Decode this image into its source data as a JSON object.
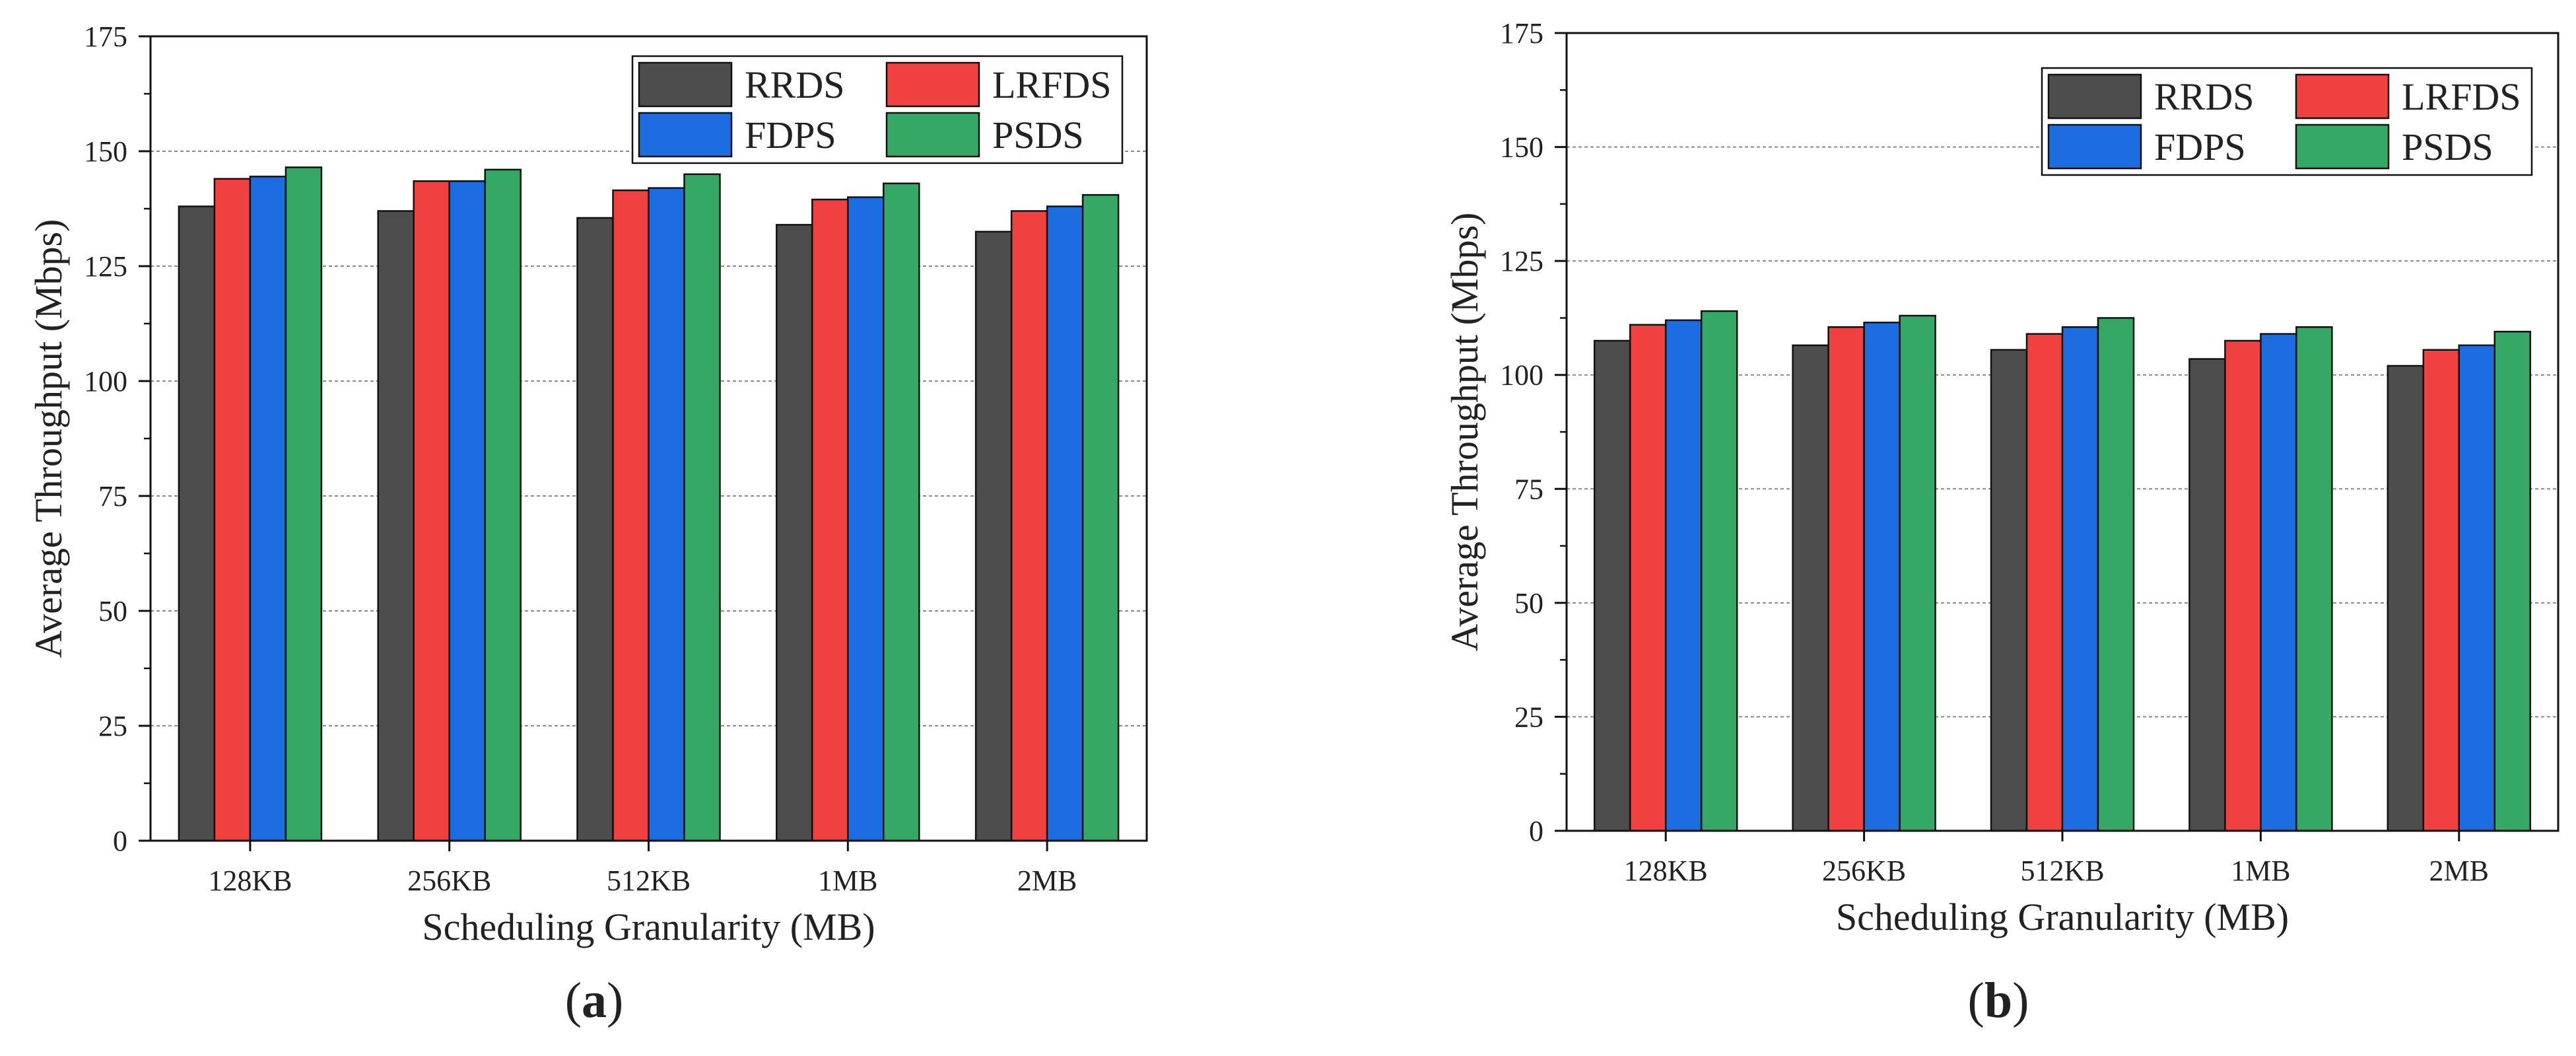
{
  "chart_data": [
    {
      "type": "bar",
      "panel": "a",
      "title": "",
      "categories": [
        "128KB",
        "256KB",
        "512KB",
        "1MB",
        "2MB"
      ],
      "series": [
        {
          "name": "RRDS",
          "color": "#4d4d4d",
          "values": [
            138,
            137,
            135.5,
            134,
            132.5
          ]
        },
        {
          "name": "LRFDS",
          "color": "#f04040",
          "values": [
            144,
            143.5,
            141.5,
            139.5,
            137
          ]
        },
        {
          "name": "FDPS",
          "color": "#1c6de0",
          "values": [
            144.5,
            143.5,
            142,
            140,
            138
          ]
        },
        {
          "name": "PSDS",
          "color": "#35a865",
          "values": [
            146.5,
            146,
            145,
            143,
            140.5
          ]
        }
      ],
      "xlabel": "Scheduling Granularity (MB)",
      "ylabel": "Average Throughput (Mbps)",
      "ylim": [
        0,
        175
      ],
      "yticks": [
        0,
        25,
        50,
        75,
        100,
        125,
        150,
        175
      ],
      "ytick_labels": [
        "0",
        "25",
        "50",
        "75",
        "100",
        "125",
        "150",
        "175"
      ],
      "grid": "horizontal dashed",
      "legend": "top-right"
    },
    {
      "type": "bar",
      "panel": "b",
      "title": "",
      "categories": [
        "128KB",
        "256KB",
        "512KB",
        "1MB",
        "2MB"
      ],
      "series": [
        {
          "name": "RRDS",
          "color": "#4d4d4d",
          "values": [
            107.5,
            106.5,
            105.5,
            103.5,
            102
          ]
        },
        {
          "name": "LRFDS",
          "color": "#f04040",
          "values": [
            111,
            110.5,
            109,
            107.5,
            105.5
          ]
        },
        {
          "name": "FDPS",
          "color": "#1c6de0",
          "values": [
            112,
            111.5,
            110.5,
            109,
            106.5
          ]
        },
        {
          "name": "PSDS",
          "color": "#35a865",
          "values": [
            114,
            113,
            112.5,
            110.5,
            109.5
          ]
        }
      ],
      "xlabel": "Scheduling Granularity (MB)",
      "ylabel": "Average Throughput (Mbps)",
      "ylim": [
        0,
        175
      ],
      "yticks": [
        0,
        25,
        50,
        75,
        100,
        125,
        150,
        175
      ],
      "ytick_labels": [
        "0",
        "25",
        "50",
        "75",
        "100",
        "125",
        "150",
        "175"
      ],
      "grid": "horizontal dashed",
      "legend": "top-right"
    }
  ],
  "panel_labels": [
    "(a)",
    "(b)"
  ]
}
